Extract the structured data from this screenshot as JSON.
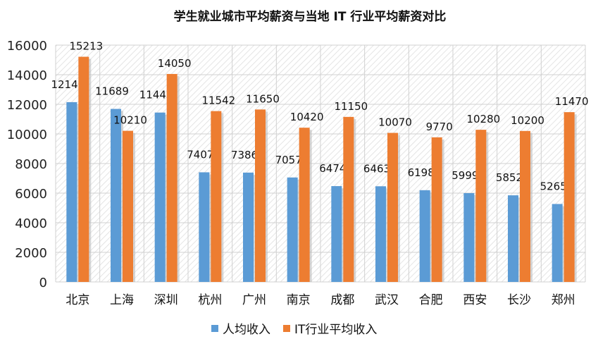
{
  "chart_data": {
    "type": "bar",
    "title": "学生就业城市平均薪资与当地 IT 行业平均薪资对比",
    "categories": [
      "北京",
      "上海",
      "深圳",
      "杭州",
      "广州",
      "南京",
      "成都",
      "武汉",
      "合肥",
      "西安",
      "长沙",
      "郑州"
    ],
    "series": [
      {
        "name": "人均收入",
        "color": "#5b9bd5",
        "values": [
          12147,
          11689,
          11443,
          7407,
          7386,
          7057,
          6474,
          6463,
          6198,
          5999,
          5852,
          5265
        ]
      },
      {
        "name": "IT行业平均收入",
        "color": "#ed7d31",
        "values": [
          15213,
          10210,
          14050,
          11542,
          11650,
          10420,
          11150,
          10070,
          9770,
          10280,
          10200,
          11470
        ]
      }
    ],
    "ylim": [
      0,
      16000
    ],
    "yticks": [
      0,
      2000,
      4000,
      6000,
      8000,
      10000,
      12000,
      14000,
      16000
    ],
    "grid": true,
    "legend": "bottom",
    "data_labels": true
  }
}
